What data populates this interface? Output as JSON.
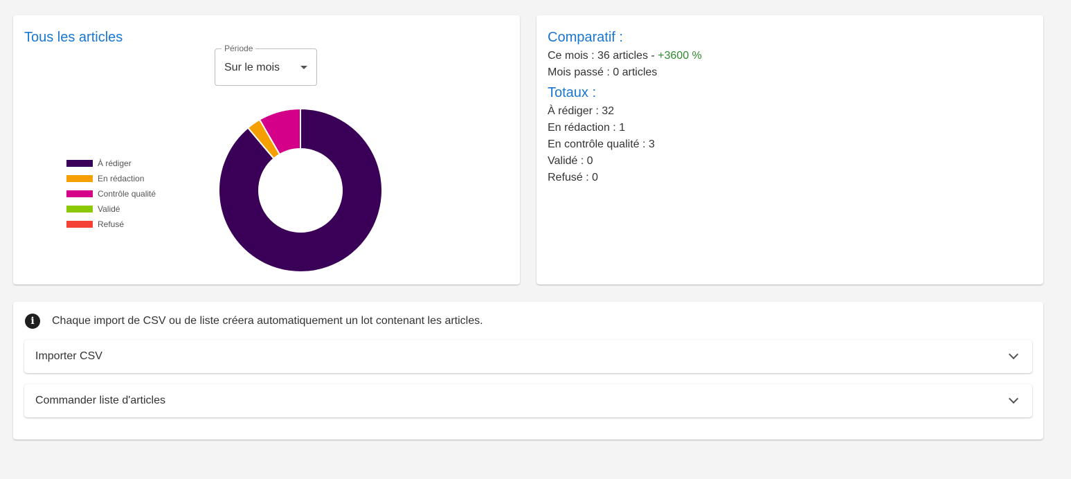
{
  "chart_card": {
    "title": "Tous les articles",
    "period_select": {
      "label": "Période",
      "value": "Sur le mois"
    }
  },
  "chart_data": {
    "type": "pie",
    "donut": true,
    "categories": [
      "À rédiger",
      "En rédaction",
      "Contrôle qualité",
      "Validé",
      "Refusé"
    ],
    "values": [
      32,
      1,
      3,
      0,
      0
    ],
    "colors": [
      "#3a0058",
      "#f5a000",
      "#d4008a",
      "#8cc800",
      "#f44336"
    ],
    "legend_position": "left"
  },
  "stats_card": {
    "comparatif_title": "Comparatif :",
    "ce_mois_text": "Ce mois : 36 articles - ",
    "ce_mois_delta": "+3600 %",
    "mois_passe_text": "Mois passé : 0 articles",
    "totaux_title": "Totaux :",
    "totaux": [
      "À rédiger : 32",
      "En rédaction : 1",
      "En contrôle qualité : 3",
      "Validé : 0",
      "Refusé : 0"
    ]
  },
  "import_card": {
    "info_text": "Chaque import de CSV ou de liste créera automatiquement un lot contenant les articles.",
    "accordions": [
      {
        "label": "Importer CSV"
      },
      {
        "label": "Commander liste d'articles"
      }
    ]
  },
  "colors": {
    "accent": "#1976d2",
    "positive": "#2e8b2e",
    "background": "#f4f4f4"
  }
}
